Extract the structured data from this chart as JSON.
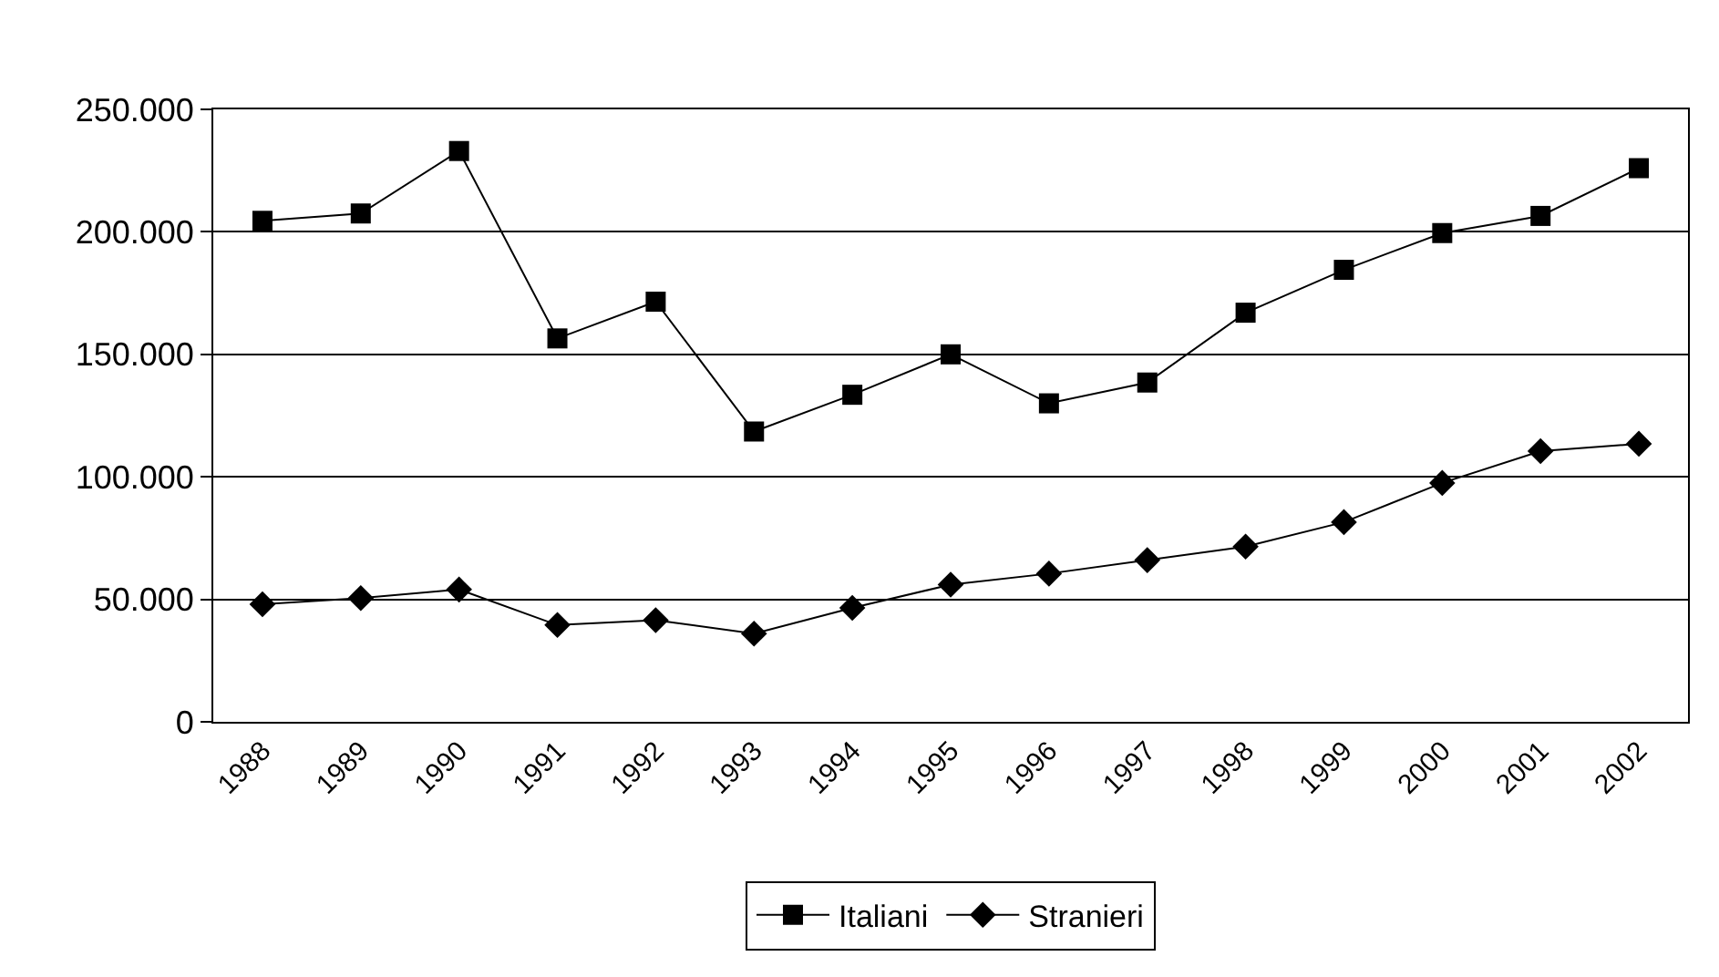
{
  "chart_data": {
    "type": "line",
    "categories": [
      "1988",
      "1989",
      "1990",
      "1991",
      "1992",
      "1993",
      "1994",
      "1995",
      "1996",
      "1997",
      "1998",
      "1999",
      "2000",
      "2001",
      "2002"
    ],
    "series": [
      {
        "name": "Italiani",
        "color": "#000000",
        "marker": "square",
        "values": [
          204500,
          207500,
          233000,
          156500,
          171500,
          118500,
          133500,
          150000,
          130000,
          138500,
          167000,
          184500,
          199500,
          206500,
          226000
        ]
      },
      {
        "name": "Stranieri",
        "color": "#000000",
        "marker": "diamond",
        "values": [
          48000,
          50500,
          54000,
          39500,
          41500,
          36000,
          46500,
          56000,
          60500,
          66000,
          71500,
          81500,
          97500,
          110500,
          113500
        ]
      }
    ],
    "ylim": [
      0,
      250000
    ],
    "yticks": [
      {
        "value": 0,
        "label": "0"
      },
      {
        "value": 50000,
        "label": "50.000"
      },
      {
        "value": 100000,
        "label": "100.000"
      },
      {
        "value": 150000,
        "label": "150.000"
      },
      {
        "value": 200000,
        "label": "200.000"
      },
      {
        "value": 250000,
        "label": "250.000"
      }
    ],
    "grid": "y",
    "legend": "bottom",
    "line_style": "solid"
  }
}
